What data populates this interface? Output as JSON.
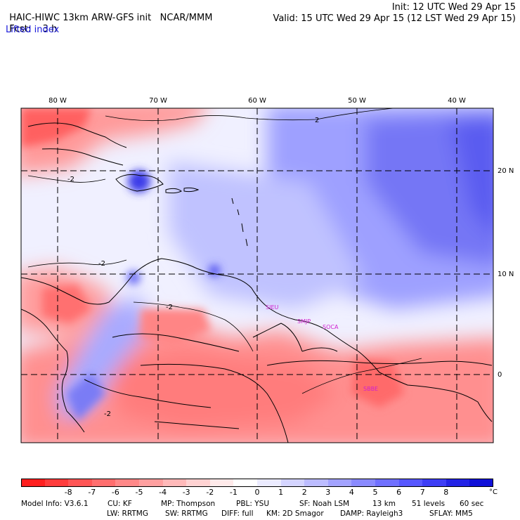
{
  "header": {
    "model_title": "HAIC-HIWC 13km ARW-GFS init",
    "org": "NCAR/MMM",
    "init": "Init: 12 UTC Wed 29 Apr 15",
    "fcst_label": "Fcst:",
    "fcst_value": "3 h",
    "valid": "Valid: 15 UTC Wed 29 Apr 15 (12 LST Wed 29 Apr 15)",
    "field": "Lifted index"
  },
  "map": {
    "lon_labels": [
      "80 W",
      "70 W",
      "60 W",
      "50 W",
      "40 W"
    ],
    "lat_labels": [
      "20 N",
      "10 N",
      "0"
    ],
    "contour_labels": [
      "2",
      "-2",
      "-2",
      "-2",
      "-2"
    ],
    "stations": [
      "SIEU",
      "SMJP",
      "SOCA",
      "SBBE"
    ],
    "station_color": "#d020d0"
  },
  "colorbar": {
    "ticks": [
      "-8",
      "-7",
      "-6",
      "-5",
      "-4",
      "-3",
      "-2",
      "-1",
      "0",
      "1",
      "2",
      "3",
      "4",
      "5",
      "6",
      "7",
      "8"
    ],
    "unit": "°C",
    "colors": [
      "#ff1f1f",
      "#ff3c3c",
      "#ff5555",
      "#ff6e6e",
      "#ff8888",
      "#ffa0a0",
      "#ffb9b9",
      "#ffd2d2",
      "#ffeaea",
      "#ffffff",
      "#ebebff",
      "#d4d4ff",
      "#bcbcff",
      "#a3a3ff",
      "#8a8aff",
      "#7070ff",
      "#5757ff",
      "#3d3df5",
      "#2323e6",
      "#1010d8"
    ]
  },
  "footer": {
    "line1": [
      "Model Info: V3.6.1",
      "CU: KF",
      "MP: Thompson",
      "PBL: YSU",
      "SF: Noah LSM",
      "13 km",
      "51 levels",
      "60 sec"
    ],
    "line2": [
      "LW: RRTMG",
      "SW: RRTMG",
      "DIFF: full",
      "KM: 2D Smagor",
      "DAMP: Rayleigh3",
      "SFLAY: MM5"
    ]
  }
}
